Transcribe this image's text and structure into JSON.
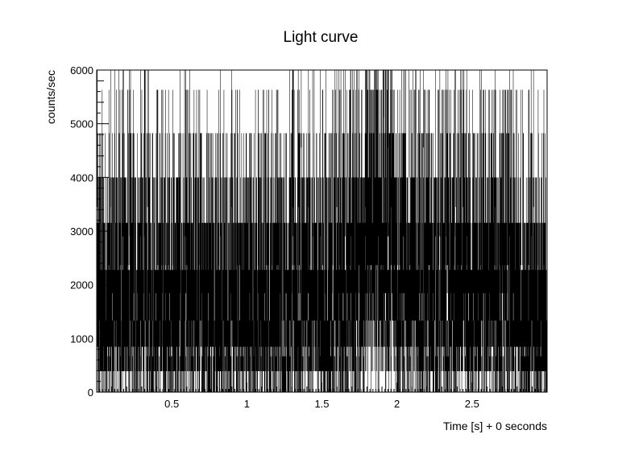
{
  "chart_data": {
    "type": "line",
    "title": "Light curve",
    "xlabel": "Time [s] + 0 seconds",
    "ylabel": "counts/sec",
    "xlim": [
      0,
      3.0
    ],
    "ylim": [
      0,
      6000
    ],
    "x_ticks": [
      0.5,
      1,
      1.5,
      2,
      2.5
    ],
    "x_tick_labels": [
      "0.5",
      "1",
      "1.5",
      "2",
      "2.5"
    ],
    "y_ticks": [
      0,
      1000,
      2000,
      3000,
      4000,
      5000,
      6000
    ],
    "y_tick_labels": [
      "0",
      "1000",
      "2000",
      "3000",
      "4000",
      "5000",
      "6000"
    ],
    "grid": false,
    "legend": "none",
    "bin_width": 0.001,
    "series": [
      {
        "style": "vertical error bars",
        "color": "#000000",
        "points": [
          [
            0.05,
            1800
          ],
          [
            0.1,
            1700
          ],
          [
            0.15,
            2200
          ],
          [
            0.2,
            2000
          ],
          [
            0.25,
            1700
          ],
          [
            0.3,
            1900
          ],
          [
            0.35,
            1900
          ],
          [
            0.4,
            2000
          ],
          [
            0.45,
            1700
          ],
          [
            0.5,
            1750
          ],
          [
            0.55,
            1800
          ],
          [
            0.6,
            1700
          ],
          [
            0.65,
            1900
          ],
          [
            0.7,
            1800
          ],
          [
            0.75,
            1900
          ],
          [
            0.8,
            1900
          ],
          [
            0.85,
            1750
          ],
          [
            0.9,
            1700
          ],
          [
            0.95,
            1800
          ],
          [
            1.0,
            1700
          ],
          [
            1.05,
            1750
          ],
          [
            1.1,
            1850
          ],
          [
            1.15,
            1800
          ],
          [
            1.2,
            1950
          ],
          [
            1.25,
            1750
          ],
          [
            1.3,
            1900
          ],
          [
            1.35,
            2000
          ],
          [
            1.4,
            1750
          ],
          [
            1.45,
            1900
          ],
          [
            1.5,
            1850
          ],
          [
            1.55,
            1750
          ],
          [
            1.6,
            1950
          ],
          [
            1.65,
            2200
          ],
          [
            1.7,
            2200
          ],
          [
            1.75,
            2400
          ],
          [
            1.8,
            2800
          ],
          [
            1.85,
            3000
          ],
          [
            1.9,
            2900
          ],
          [
            1.95,
            3000
          ],
          [
            2.0,
            2400
          ],
          [
            2.05,
            2100
          ],
          [
            2.1,
            2100
          ],
          [
            2.15,
            2000
          ],
          [
            2.2,
            1900
          ],
          [
            2.25,
            1850
          ],
          [
            2.3,
            2000
          ],
          [
            2.35,
            1800
          ],
          [
            2.4,
            1900
          ],
          [
            2.45,
            2000
          ],
          [
            2.5,
            1900
          ],
          [
            2.55,
            1900
          ],
          [
            2.6,
            2000
          ],
          [
            2.65,
            2000
          ],
          [
            2.7,
            1850
          ],
          [
            2.75,
            1800
          ],
          [
            2.8,
            1900
          ],
          [
            2.85,
            1700
          ],
          [
            2.9,
            1800
          ],
          [
            2.95,
            1600
          ],
          [
            3.0,
            1300
          ]
        ]
      }
    ]
  }
}
